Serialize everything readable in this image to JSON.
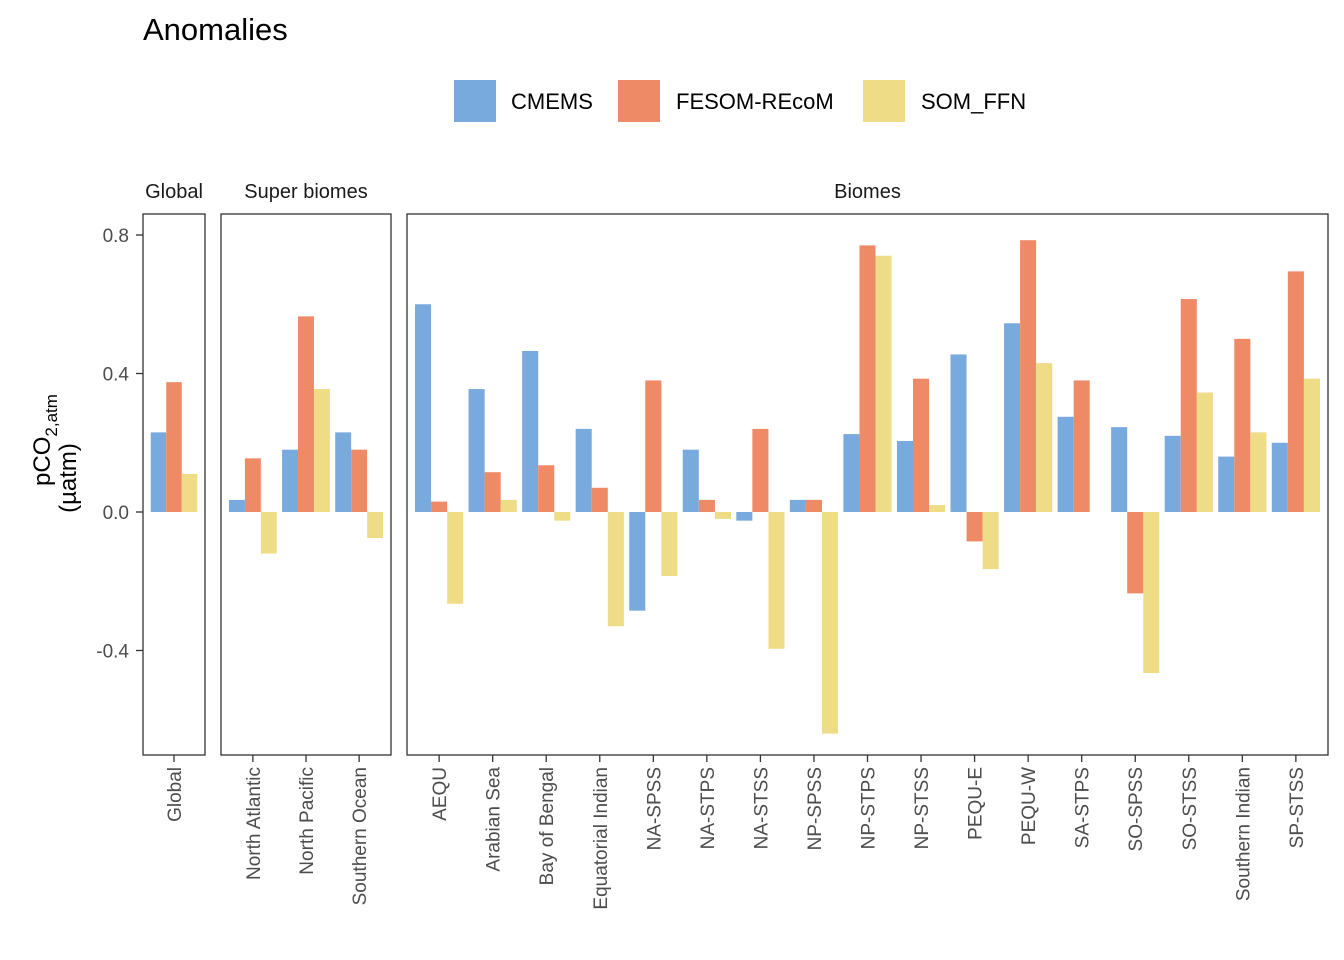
{
  "chart_data": {
    "type": "bar",
    "title": "Anomalies",
    "ylabel_main": "pCO",
    "ylabel_sub": "2,atm",
    "ylabel_unit": "(µatm)",
    "ylim": [
      -0.53,
      0.8
    ],
    "yticks": [
      -0.4,
      0.0,
      0.4,
      0.8
    ],
    "ytick_labels": [
      "-0.4",
      "0.0",
      "0.4",
      "0.8"
    ],
    "legend_position": "top",
    "colors": {
      "CMEMS": "#78AADE",
      "FESOM-REcoM": "#EF8A66",
      "SOM_FFN": "#EEDC87"
    },
    "series_names": [
      "CMEMS",
      "FESOM-REcoM",
      "SOM_FFN"
    ],
    "facets": [
      {
        "name": "Global",
        "categories": [
          "Global"
        ],
        "values": [
          [
            0.23,
            0.375,
            0.11
          ]
        ]
      },
      {
        "name": "Super biomes",
        "categories": [
          "North Atlantic",
          "North Pacific",
          "Southern Ocean"
        ],
        "values": [
          [
            0.035,
            0.155,
            -0.12
          ],
          [
            0.18,
            0.565,
            0.355
          ],
          [
            0.23,
            0.18,
            -0.075
          ]
        ]
      },
      {
        "name": "Biomes",
        "categories": [
          "AEQU",
          "Arabian Sea",
          "Bay of Bengal",
          "Equatorial Indian",
          "NA-SPSS",
          "NA-STPS",
          "NA-STSS",
          "NP-SPSS",
          "NP-STPS",
          "NP-STSS",
          "PEQU-E",
          "PEQU-W",
          "SA-STPS",
          "SO-SPSS",
          "SO-STSS",
          "Southern Indian",
          "SP-STSS"
        ],
        "values": [
          [
            0.6,
            0.03,
            -0.265
          ],
          [
            0.355,
            0.115,
            0.035
          ],
          [
            0.465,
            0.135,
            -0.025
          ],
          [
            0.24,
            0.07,
            -0.33
          ],
          [
            -0.285,
            0.38,
            -0.185
          ],
          [
            0.18,
            0.035,
            -0.02
          ],
          [
            -0.025,
            0.24,
            -0.395
          ],
          [
            0.035,
            0.035,
            -0.64
          ],
          [
            0.225,
            0.77,
            0.74
          ],
          [
            0.205,
            0.385,
            0.02
          ],
          [
            0.455,
            -0.085,
            -0.165
          ],
          [
            0.545,
            0.785,
            0.43
          ],
          [
            0.275,
            0.38,
            0.0
          ],
          [
            0.245,
            -0.235,
            -0.465
          ],
          [
            0.22,
            0.615,
            0.345
          ],
          [
            0.16,
            0.5,
            0.23
          ],
          [
            0.2,
            0.695,
            0.385
          ]
        ]
      }
    ]
  }
}
